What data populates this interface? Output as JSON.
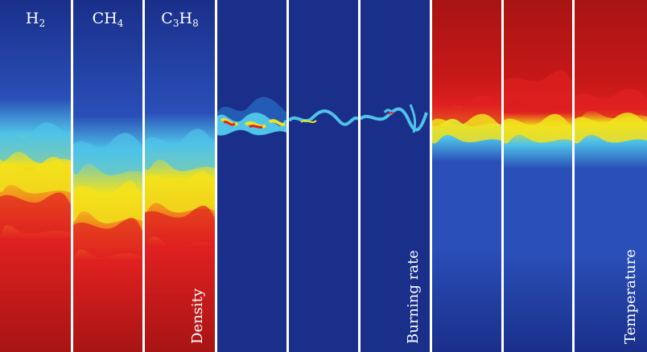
{
  "groups": {
    "density": {
      "label": "Density"
    },
    "burning": {
      "label": "Burning rate"
    },
    "temperature": {
      "label": "Temperature"
    }
  },
  "species": [
    {
      "base": "H",
      "sub": "2",
      "rest": "",
      "sub2": ""
    },
    {
      "base": "CH",
      "sub": "4",
      "rest": "",
      "sub2": ""
    },
    {
      "base": "C",
      "sub": "3",
      "rest": "H",
      "sub2": "8"
    }
  ],
  "colors": {
    "deep_blue": "#1a2f8a",
    "blue": "#2a4fb8",
    "cyan": "#4fc3e8",
    "yellow": "#f2e21c",
    "orange": "#f08a1c",
    "red": "#e02020",
    "dark_red": "#a81414",
    "divider": "#ffffff"
  }
}
